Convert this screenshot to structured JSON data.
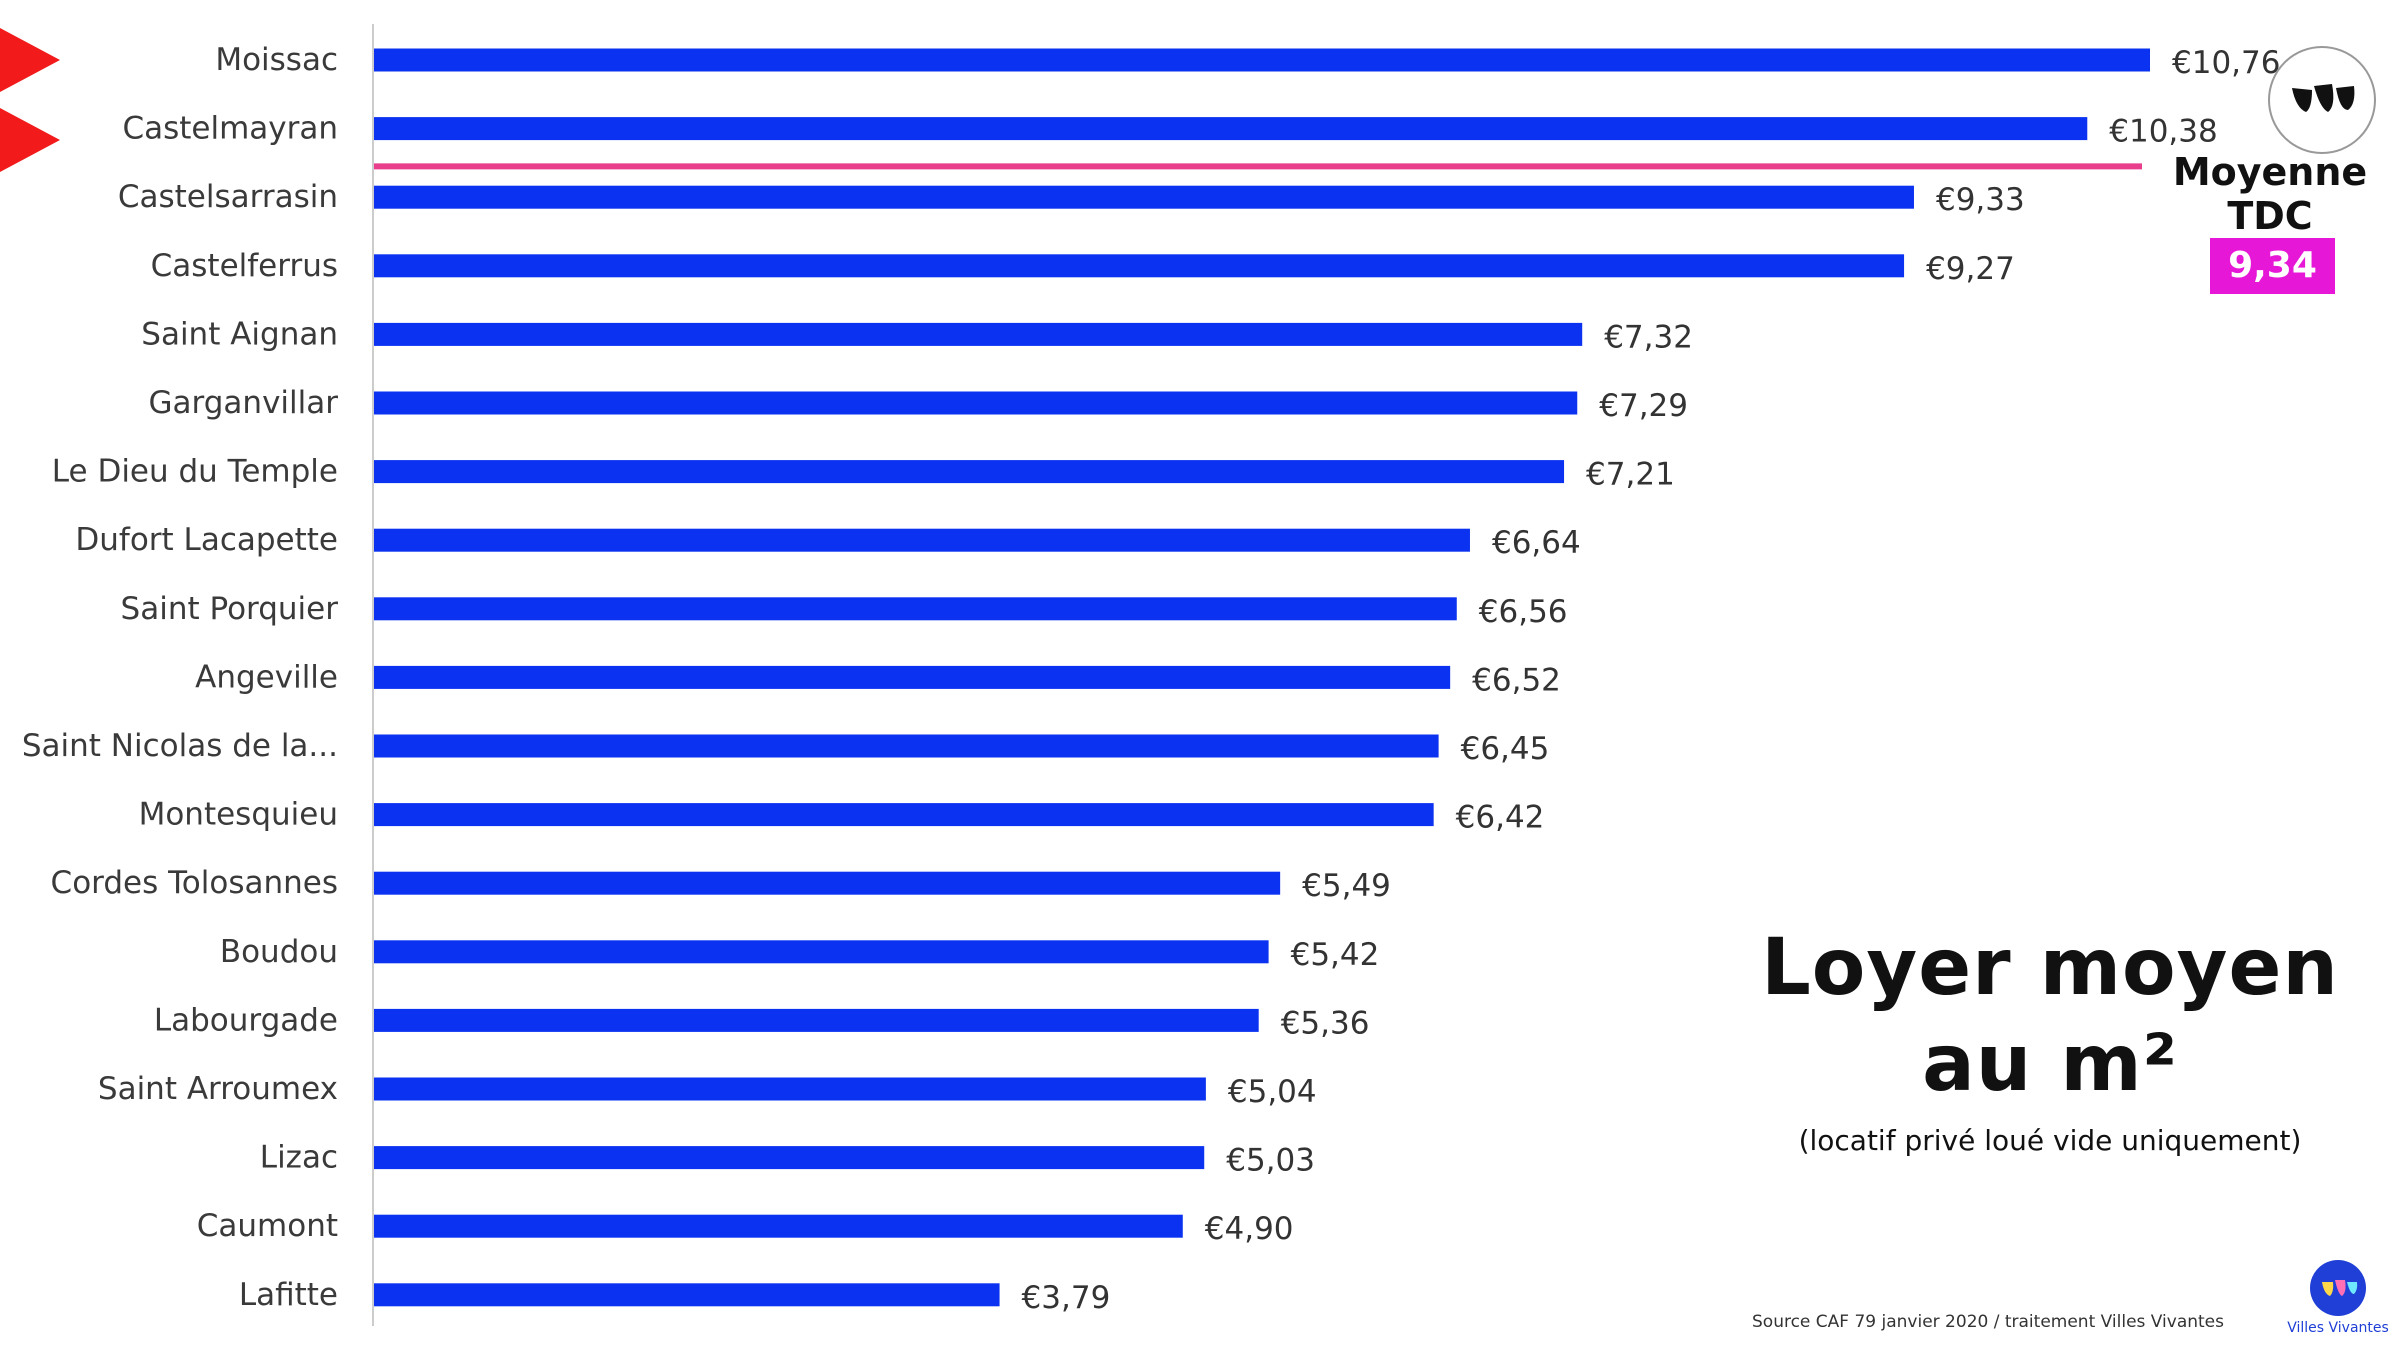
{
  "chart_data": {
    "type": "bar",
    "orientation": "horizontal",
    "categories": [
      "Moissac",
      "Castelmayran",
      "Castelsarrasin",
      "Castelferrus",
      "Saint Aignan",
      "Garganvillar",
      "Le Dieu du Temple",
      "Dufort Lacapette",
      "Saint Porquier",
      "Angeville",
      "Saint Nicolas de la...",
      "Montesquieu",
      "Cordes Tolosannes",
      "Boudou",
      "Labourgade",
      "Saint Arroumex",
      "Lizac",
      "Caumont",
      "Lafitte"
    ],
    "values": [
      10.76,
      10.38,
      9.33,
      9.27,
      7.32,
      7.29,
      7.21,
      6.64,
      6.56,
      6.52,
      6.45,
      6.42,
      5.49,
      5.42,
      5.36,
      5.04,
      5.03,
      4.9,
      3.79
    ],
    "value_labels": [
      "€10,76",
      "€10,38",
      "€9,33",
      "€9,27",
      "€7,32",
      "€7,29",
      "€7,21",
      "€6,64",
      "€6,56",
      "€6,52",
      "€6,45",
      "€6,42",
      "€5,49",
      "€5,42",
      "€5,36",
      "€5,04",
      "€5,03",
      "€4,90",
      "€3,79"
    ],
    "reference_line": {
      "value": 9.34,
      "label": "Moyenne TDC",
      "value_label": "9,34 €",
      "color": "#e83e8c"
    },
    "xlim": [
      0,
      10.76
    ],
    "bar_color": "#0a32f0",
    "title": "",
    "xlabel": "",
    "ylabel": "",
    "grid": false,
    "legend": "none"
  },
  "annotations": {
    "title_line1": "Loyer moyen",
    "title_line2": "au m²",
    "subtitle": "(locatif privé loué vide uniquement)",
    "moyenne_line1": "Moyenne",
    "moyenne_line2": "TDC",
    "moyenne_value": "9,34 €",
    "source": "Source CAF 79 janvier 2020 / traitement Villes Vivantes",
    "brand": "Villes Vivantes"
  },
  "colors": {
    "bar": "#0a32f0",
    "highlight_flag": "#f21a1a",
    "average_box": "#e617d6",
    "average_line": "#e83e8c"
  },
  "icons": [
    "red-flag-icon",
    "villes-vivantes-logo-icon"
  ]
}
